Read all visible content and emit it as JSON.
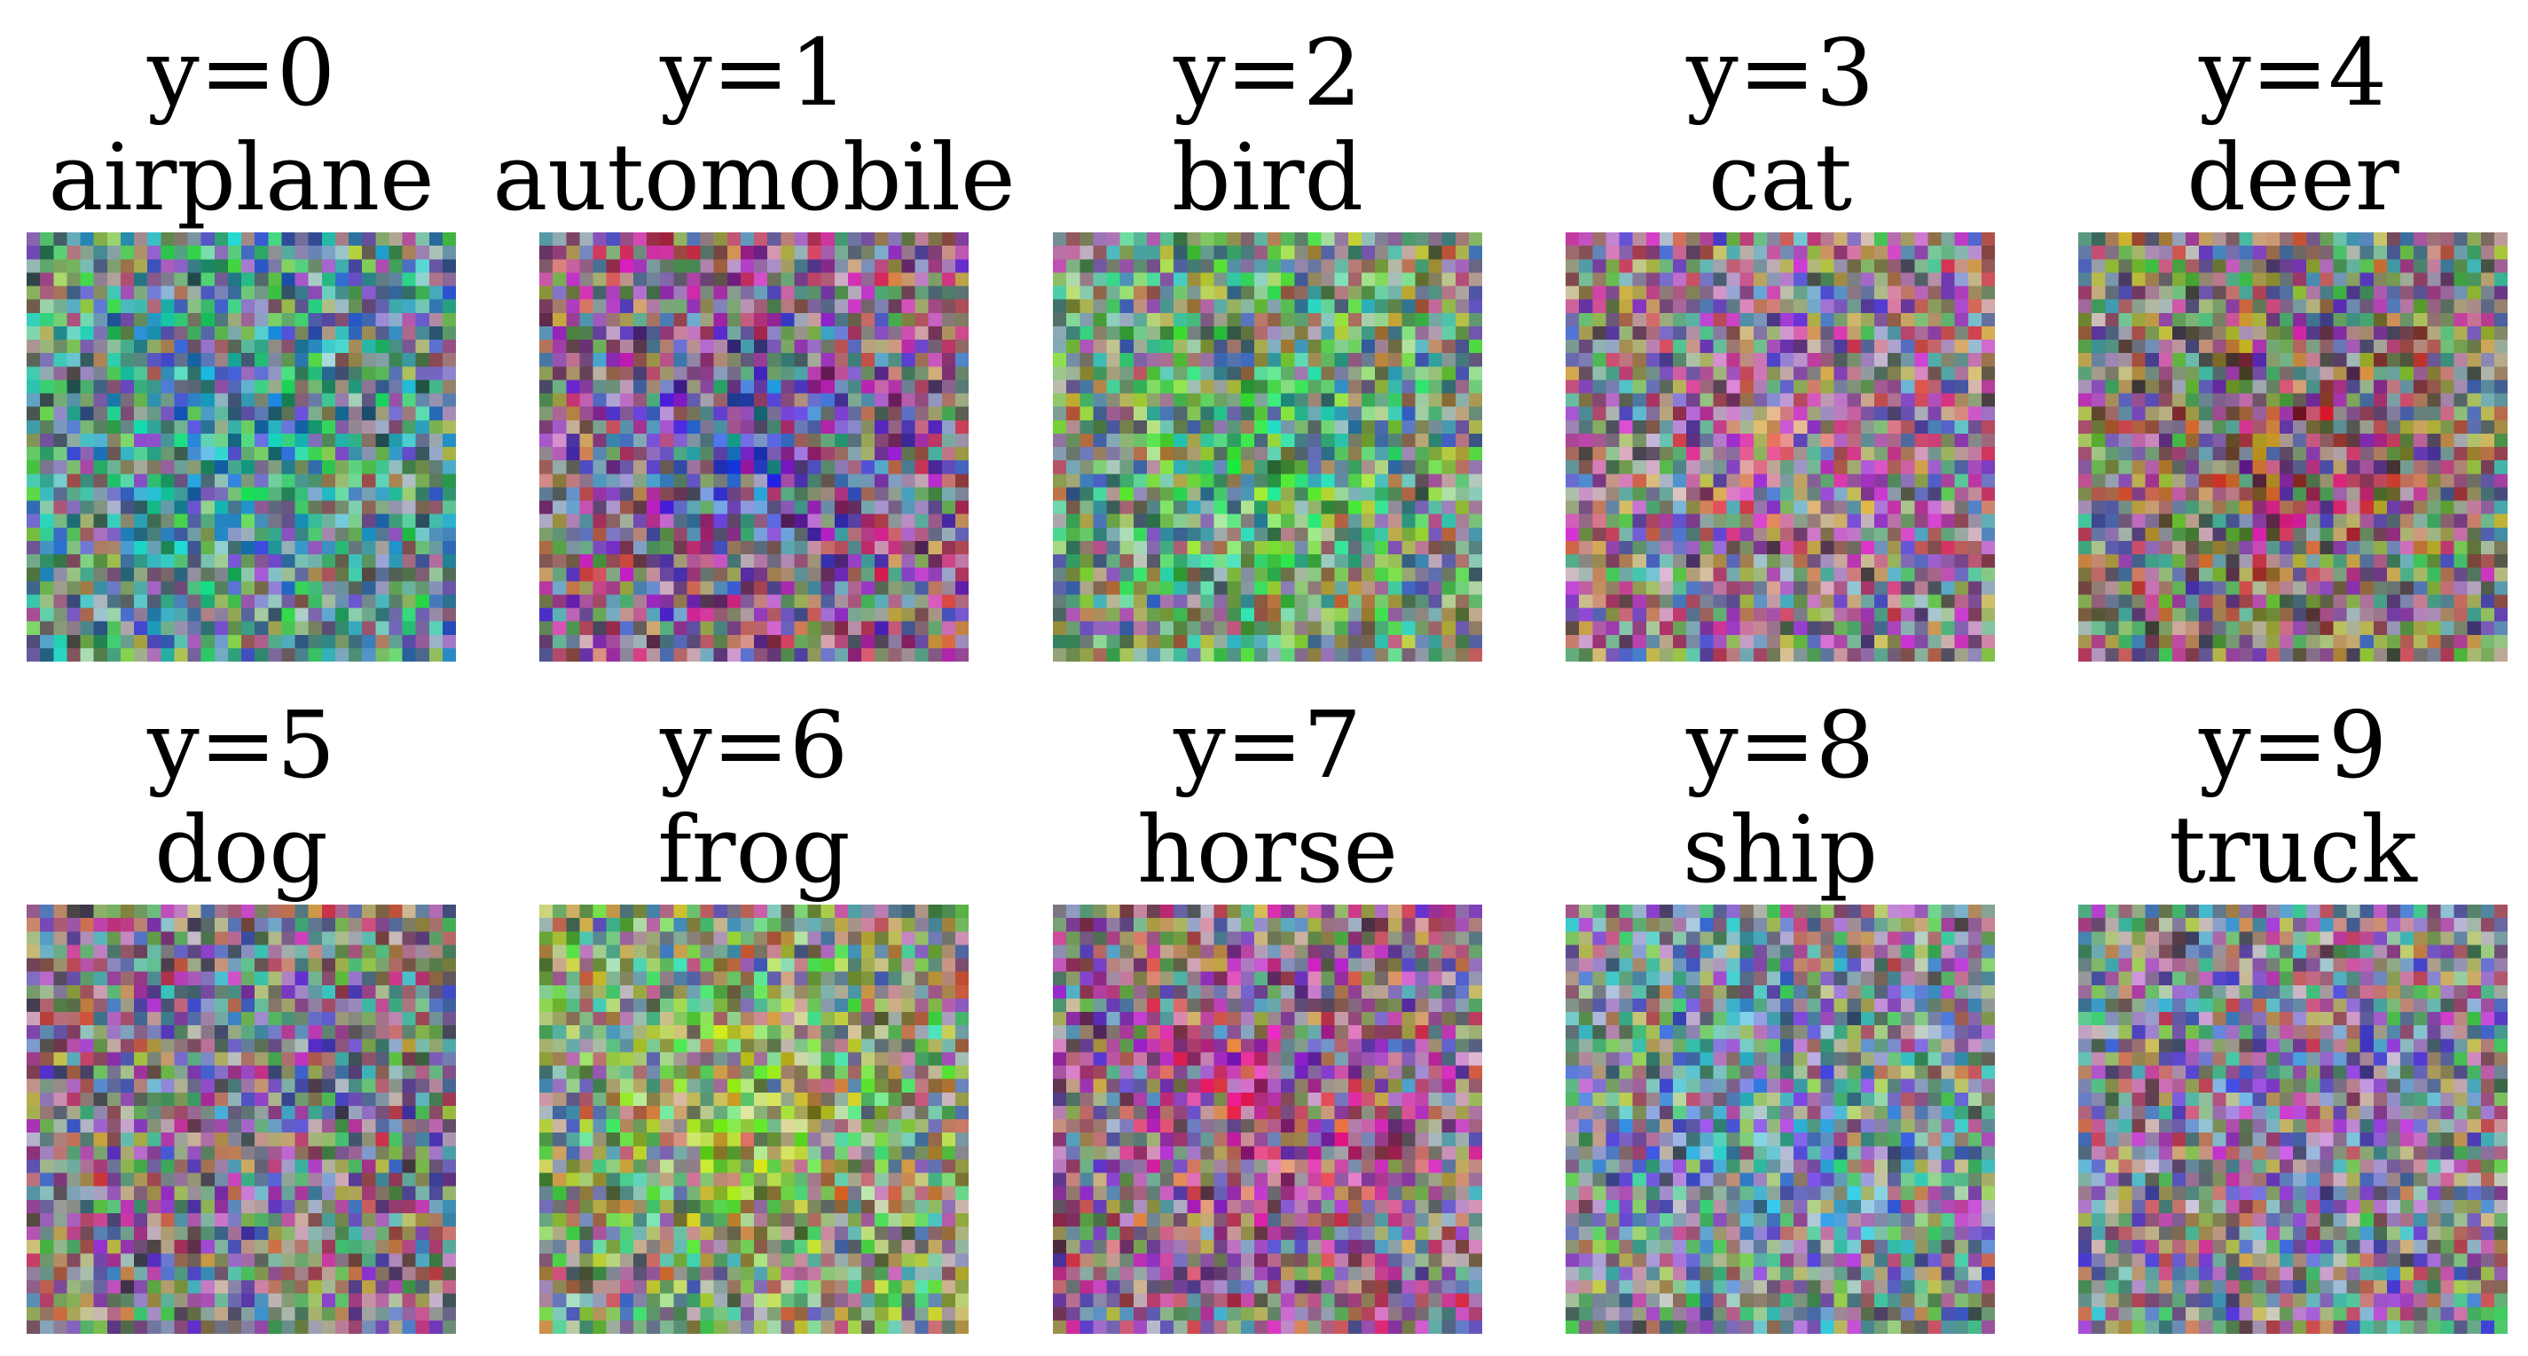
{
  "classes": [
    {
      "index_label": "y=0",
      "name": "airplane",
      "center_color": "#3fae9a",
      "center_blob": "#2f9fae"
    },
    {
      "index_label": "y=1",
      "name": "automobile",
      "center_color": "#b03c8a",
      "center_blob": "#2d58c4"
    },
    {
      "index_label": "y=2",
      "name": "bird",
      "center_color": "#6fbf6a",
      "center_blob": "#49c27a"
    },
    {
      "index_label": "y=3",
      "name": "cat",
      "center_color": "#a57aa0",
      "center_blob": "#b06f9a"
    },
    {
      "index_label": "y=4",
      "name": "deer",
      "center_color": "#8a7a5e",
      "center_blob": "#a03a5c"
    },
    {
      "index_label": "y=5",
      "name": "dog",
      "center_color": "#8c6f86",
      "center_blob": "#7d6aa0"
    },
    {
      "index_label": "y=6",
      "name": "frog",
      "center_color": "#8cc26a",
      "center_blob": "#a8d63a"
    },
    {
      "index_label": "y=7",
      "name": "horse",
      "center_color": "#b05a96",
      "center_blob": "#c23a8a"
    },
    {
      "index_label": "y=8",
      "name": "ship",
      "center_color": "#7f9fb5",
      "center_blob": "#5f8fc8"
    },
    {
      "index_label": "y=9",
      "name": "truck",
      "center_color": "#8f8aa8",
      "center_blob": "#8a6fb0"
    }
  ]
}
